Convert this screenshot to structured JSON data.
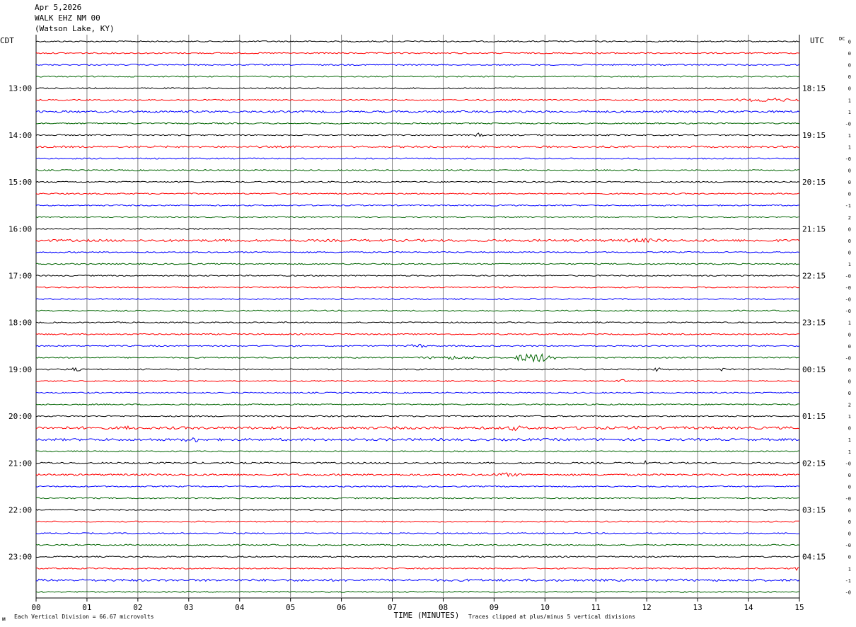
{
  "header": {
    "date": "Apr 5,2026",
    "station": "WALK EHZ NM 00",
    "location": "(Watson Lake, KY)"
  },
  "labels": {
    "left_tz": "CDT",
    "right_tz": "UTC",
    "dc": "DC",
    "xlabel": "TIME (MINUTES)",
    "footer_left": "Each Vertical Division =   66.67 microvolts",
    "footer_right": "Traces clipped at plus/minus 5 vertical divisions",
    "corner_mark": "ᴍ"
  },
  "colors": {
    "trace_cycle": [
      "#000000",
      "#ff0000",
      "#0000ff",
      "#006400"
    ],
    "grid": "#808080",
    "text": "#000000"
  },
  "chart_data": {
    "type": "line",
    "title": "WALK EHZ NM 00",
    "xlabel": "TIME (MINUTES)",
    "xlim": [
      0,
      15
    ],
    "x_ticks": [
      "00",
      "01",
      "02",
      "03",
      "04",
      "05",
      "06",
      "07",
      "08",
      "09",
      "10",
      "11",
      "12",
      "13",
      "14",
      "15"
    ],
    "rows": 48,
    "minutes_per_row": 15,
    "left_hour_labels": [
      "13:00",
      "14:00",
      "15:00",
      "16:00",
      "17:00",
      "18:00",
      "19:00",
      "20:00",
      "21:00",
      "22:00",
      "23:00"
    ],
    "right_hour_labels": [
      "18:15",
      "19:15",
      "20:15",
      "21:15",
      "22:15",
      "23:15",
      "00:15",
      "01:15",
      "02:15",
      "03:15",
      "04:15"
    ],
    "hour_label_start_row": 4,
    "dc_offsets": [
      "0",
      "0",
      "0",
      "0",
      "0",
      "1",
      "1",
      "-0",
      "1",
      "1",
      "-0",
      "0",
      "0",
      "0",
      "-1",
      "2",
      "0",
      "0",
      "0",
      "1",
      "-0",
      "-0",
      "-0",
      "-0",
      "1",
      "0",
      "0",
      "-0",
      "0",
      "0",
      "0",
      "2",
      "1",
      "0",
      "1",
      "1",
      "-0",
      "0",
      "0",
      "-0",
      "0",
      "0",
      "0",
      "-0",
      "0",
      "1",
      "-1",
      "-0"
    ],
    "amplitude_scale": [
      1,
      1,
      1,
      1,
      1,
      1,
      1.6,
      1,
      1,
      1.5,
      1,
      1,
      1,
      1,
      1,
      1,
      1,
      1.8,
      1,
      1,
      1,
      1,
      1,
      1,
      1,
      1,
      1,
      1,
      1,
      1,
      1,
      1,
      1,
      2,
      1.8,
      1,
      1.3,
      1.4,
      1,
      1,
      1,
      1,
      1,
      1,
      1,
      1,
      1.8,
      1
    ],
    "events": [
      {
        "row": 5,
        "start": 13.7,
        "end": 15.0,
        "amp": 3
      },
      {
        "row": 8,
        "start": 8.6,
        "end": 8.8,
        "amp": 3
      },
      {
        "row": 17,
        "start": 11.4,
        "end": 12.5,
        "amp": 3
      },
      {
        "row": 26,
        "start": 7.3,
        "end": 7.7,
        "amp": 3
      },
      {
        "row": 27,
        "start": 9.4,
        "end": 10.2,
        "amp": 7
      },
      {
        "row": 27,
        "start": 7.5,
        "end": 8.9,
        "amp": 2.5
      },
      {
        "row": 28,
        "start": 0.6,
        "end": 0.9,
        "amp": 3
      },
      {
        "row": 28,
        "start": 12.1,
        "end": 12.3,
        "amp": 3
      },
      {
        "row": 28,
        "start": 13.4,
        "end": 13.6,
        "amp": 3
      },
      {
        "row": 29,
        "start": 11.4,
        "end": 11.6,
        "amp": 3
      },
      {
        "row": 33,
        "start": 9.2,
        "end": 9.6,
        "amp": 4
      },
      {
        "row": 33,
        "start": 1.7,
        "end": 1.85,
        "amp": 4
      },
      {
        "row": 33,
        "start": 10.6,
        "end": 10.8,
        "amp": 3
      },
      {
        "row": 33,
        "start": 11.7,
        "end": 11.9,
        "amp": 3
      },
      {
        "row": 34,
        "start": 2.9,
        "end": 3.3,
        "amp": 4
      },
      {
        "row": 36,
        "start": 11.9,
        "end": 12.0,
        "amp": 4
      },
      {
        "row": 37,
        "start": 8.8,
        "end": 9.6,
        "amp": 3
      },
      {
        "row": 45,
        "start": 14.9,
        "end": 15.0,
        "amp": 3
      },
      {
        "row": 46,
        "start": 0.0,
        "end": 1.0,
        "amp": 2
      }
    ]
  }
}
